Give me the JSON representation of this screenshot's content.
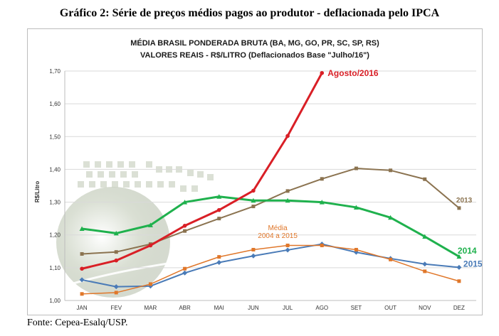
{
  "header": {
    "title": "Gráfico 2: Série de preços médios pagos ao produtor - deflacionada pelo IPCA"
  },
  "footer": {
    "source": "Fonte: Cepea-Esalq/USP."
  },
  "chart_data": {
    "type": "line",
    "title": "MÉDIA BRASIL PONDERADA BRUTA (BA, MG, GO, PR, SC, SP, RS)",
    "subtitle": "VALORES REAIS - R$/LITRO (Deflacionados Base \"Julho/16\")",
    "xlabel": "",
    "ylabel": "R$/Litro",
    "ylim": [
      1.0,
      1.7
    ],
    "yticks": [
      "1,00",
      "1,10",
      "1,20",
      "1,30",
      "1,40",
      "1,50",
      "1,60",
      "1,70"
    ],
    "ytick_values": [
      1.0,
      1.1,
      1.2,
      1.3,
      1.4,
      1.5,
      1.6,
      1.7
    ],
    "categories": [
      "JAN",
      "FEV",
      "MAR",
      "ABR",
      "MAI",
      "JUN",
      "JUL",
      "AGO",
      "SET",
      "OUT",
      "NOV",
      "DEZ"
    ],
    "grid": true,
    "series": [
      {
        "name": "2013",
        "color": "#8b7350",
        "marker": "square",
        "values": [
          1.142,
          1.148,
          1.172,
          1.212,
          1.25,
          1.287,
          1.334,
          1.371,
          1.403,
          1.397,
          1.37,
          1.282
        ]
      },
      {
        "name": "2014",
        "color": "#1fb14d",
        "marker": "triangle",
        "values": [
          1.219,
          1.205,
          1.23,
          1.3,
          1.317,
          1.305,
          1.305,
          1.3,
          1.284,
          1.253,
          1.195,
          1.134
        ]
      },
      {
        "name": "2015",
        "color": "#4a7bb7",
        "marker": "diamond",
        "values": [
          1.063,
          1.042,
          1.044,
          1.084,
          1.116,
          1.136,
          1.154,
          1.172,
          1.147,
          1.128,
          1.111,
          1.101
        ]
      },
      {
        "name": "Média\n2004 a 2015",
        "label_lines": [
          "Média",
          "2004 a 2015"
        ],
        "color": "#e0772a",
        "marker": "square",
        "values": [
          1.02,
          1.024,
          1.05,
          1.097,
          1.133,
          1.155,
          1.168,
          1.168,
          1.155,
          1.125,
          1.089,
          1.059
        ]
      },
      {
        "name": "Agosto/2016",
        "color": "#d91f26",
        "marker": "circle",
        "values": [
          1.097,
          1.122,
          1.168,
          1.228,
          1.276,
          1.335,
          1.502,
          1.694,
          null,
          null,
          null,
          null
        ]
      }
    ]
  }
}
